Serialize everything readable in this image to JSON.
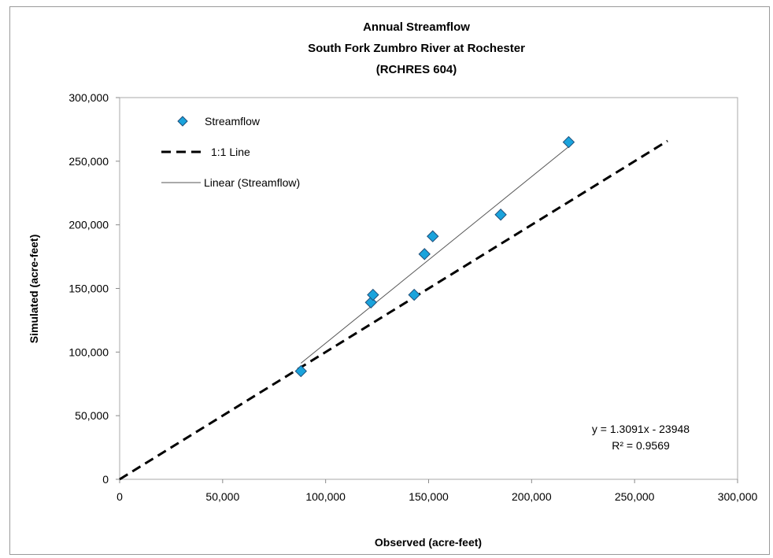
{
  "chart_data": {
    "type": "scatter",
    "title": [
      "Annual Streamflow",
      "South Fork Zumbro River at Rochester",
      "(RCHRES 604)"
    ],
    "xlabel": "Observed (acre-feet)",
    "ylabel": "Simulated (acre-feet)",
    "xlim": [
      0,
      300000
    ],
    "ylim": [
      0,
      300000
    ],
    "xticks": [
      0,
      50000,
      100000,
      150000,
      200000,
      250000,
      300000
    ],
    "yticks": [
      0,
      50000,
      100000,
      150000,
      200000,
      250000,
      300000
    ],
    "xtick_labels": [
      "0",
      "50,000",
      "100,000",
      "150,000",
      "200,000",
      "250,000",
      "300,000"
    ],
    "ytick_labels": [
      "0",
      "50,000",
      "100,000",
      "150,000",
      "200,000",
      "250,000",
      "300,000"
    ],
    "grid": false,
    "legend_position": "top-left",
    "series": [
      {
        "name": "Streamflow",
        "marker": "diamond",
        "color": "#1aa3dc",
        "points": [
          {
            "x": 88000,
            "y": 85000
          },
          {
            "x": 122000,
            "y": 139000
          },
          {
            "x": 123000,
            "y": 145000
          },
          {
            "x": 143000,
            "y": 145000
          },
          {
            "x": 148000,
            "y": 177000
          },
          {
            "x": 152000,
            "y": 191000
          },
          {
            "x": 185000,
            "y": 208000
          },
          {
            "x": 218000,
            "y": 265000
          }
        ]
      },
      {
        "name": "1:1 Line",
        "style": "dashed",
        "color": "#000000",
        "points": [
          {
            "x": 0,
            "y": 0
          },
          {
            "x": 266000,
            "y": 266000
          }
        ]
      },
      {
        "name": "Linear (Streamflow)",
        "style": "solid-thin",
        "color": "#555555",
        "points": [
          {
            "x": 88000,
            "y": 91253
          },
          {
            "x": 218000,
            "y": 261436
          }
        ]
      }
    ],
    "annotations": [
      "y = 1.3091x - 23948",
      "R² = 0.9569"
    ]
  }
}
